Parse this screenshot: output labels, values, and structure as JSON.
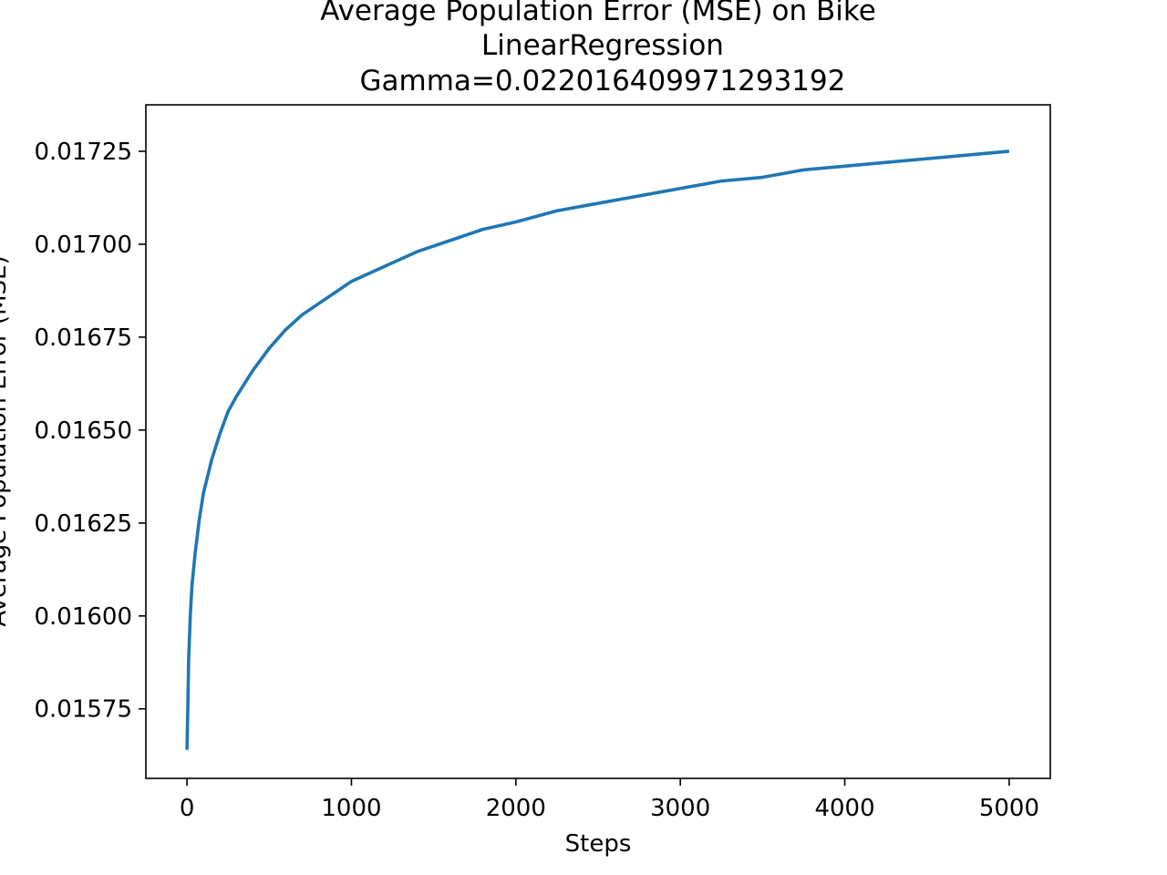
{
  "chart_data": {
    "type": "line",
    "title_lines": [
      "Average Population Error (MSE) on Bike",
      "LinearRegression",
      "Gamma=0.022016409971293192"
    ],
    "xlabel": "Steps",
    "ylabel": "Average Population Error (MSE)",
    "xlim": [
      -250,
      5250
    ],
    "ylim": [
      0.015563,
      0.017375
    ],
    "xticks": [
      0,
      1000,
      2000,
      3000,
      4000,
      5000
    ],
    "xtick_labels": [
      "0",
      "1000",
      "2000",
      "3000",
      "4000",
      "5000"
    ],
    "yticks": [
      0.01575,
      0.016,
      0.01625,
      0.0165,
      0.01675,
      0.017,
      0.01725
    ],
    "ytick_labels": [
      "0.01575",
      "0.01600",
      "0.01625",
      "0.01650",
      "0.01675",
      "0.01700",
      "0.01725"
    ],
    "grid": false,
    "series": [
      {
        "name": "MSE",
        "color": "#1f77b4",
        "x": [
          0,
          5,
          10,
          20,
          30,
          50,
          75,
          100,
          150,
          200,
          250,
          300,
          400,
          500,
          600,
          700,
          800,
          900,
          1000,
          1200,
          1400,
          1600,
          1800,
          2000,
          2250,
          2500,
          2750,
          3000,
          3250,
          3500,
          3750,
          4000,
          4250,
          4500,
          4750,
          5000
        ],
        "y": [
          0.01564,
          0.01575,
          0.01588,
          0.016,
          0.01608,
          0.01617,
          0.01626,
          0.01633,
          0.01642,
          0.01649,
          0.01655,
          0.01659,
          0.01666,
          0.01672,
          0.01677,
          0.01681,
          0.01684,
          0.01687,
          0.0169,
          0.01694,
          0.01698,
          0.01701,
          0.01704,
          0.01706,
          0.01709,
          0.01711,
          0.01713,
          0.01715,
          0.01717,
          0.01718,
          0.0172,
          0.01721,
          0.01722,
          0.01723,
          0.01724,
          0.01725
        ]
      }
    ]
  }
}
